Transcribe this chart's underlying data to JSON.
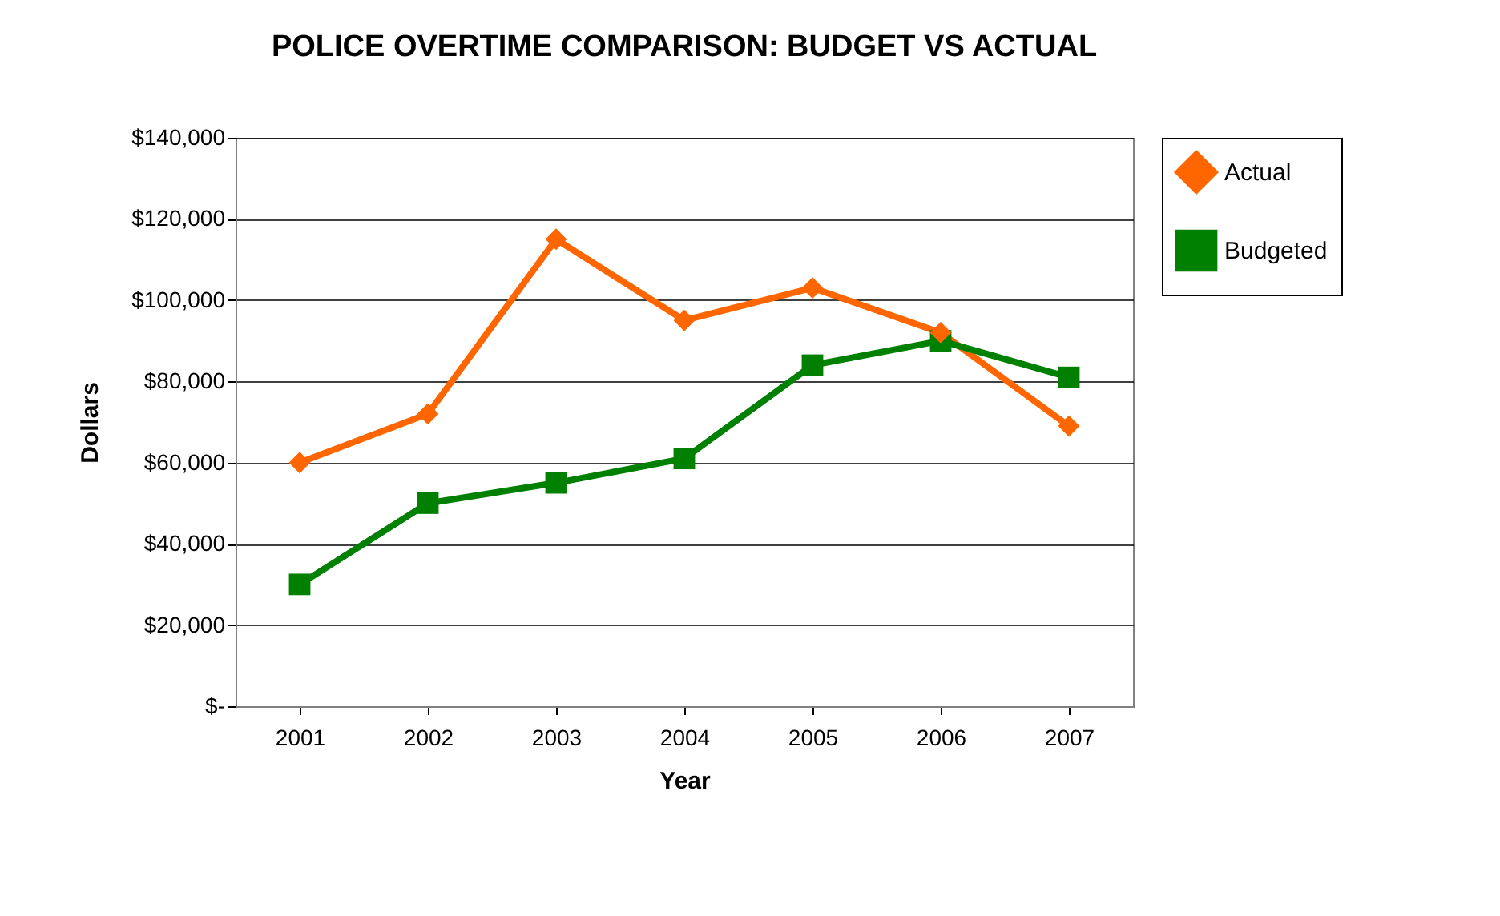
{
  "chart_data": {
    "type": "line",
    "title": "POLICE OVERTIME COMPARISON:  BUDGET VS ACTUAL",
    "xlabel": "Year",
    "ylabel": "Dollars",
    "categories": [
      "2001",
      "2002",
      "2003",
      "2004",
      "2005",
      "2006",
      "2007"
    ],
    "series": [
      {
        "name": "Actual",
        "color": "#ff6600",
        "marker": "diamond",
        "values": [
          60000,
          72000,
          115000,
          95000,
          103000,
          92000,
          69000
        ]
      },
      {
        "name": "Budgeted",
        "color": "#008000",
        "marker": "square",
        "values": [
          30000,
          50000,
          55000,
          61000,
          84000,
          90000,
          81000
        ]
      }
    ],
    "ylim": [
      0,
      140000
    ],
    "yticks": [
      {
        "value": 0,
        "label": "$-"
      },
      {
        "value": 20000,
        "label": "$20,000"
      },
      {
        "value": 40000,
        "label": "$40,000"
      },
      {
        "value": 60000,
        "label": "$60,000"
      },
      {
        "value": 80000,
        "label": "$80,000"
      },
      {
        "value": 100000,
        "label": "$100,000"
      },
      {
        "value": 120000,
        "label": "$120,000"
      },
      {
        "value": 140000,
        "label": "$140,000"
      }
    ],
    "grid": "y",
    "legend": "right",
    "line_style": "solid"
  }
}
